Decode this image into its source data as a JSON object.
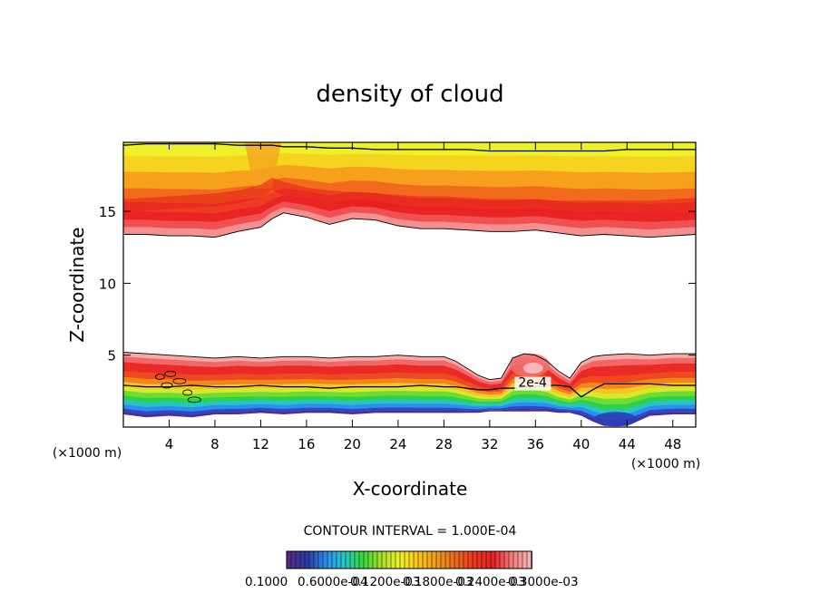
{
  "chart_data": {
    "type": "heatmap",
    "title": "density of cloud",
    "xlabel": "X-coordinate",
    "ylabel": "Z-coordinate",
    "x_unit": "(×1000 m)",
    "y_unit": "(×1000 m)",
    "xlim": [
      0,
      50
    ],
    "ylim": [
      0,
      19.8
    ],
    "x_ticks": [
      4,
      8,
      12,
      16,
      20,
      24,
      28,
      32,
      36,
      40,
      44,
      48
    ],
    "y_ticks": [
      5,
      10,
      15
    ],
    "contour_interval_text": "CONTOUR INTERVAL = 1.000E-04",
    "contour_label": "2e-4",
    "contour_label_position": [
      34.5,
      2.8
    ],
    "colorbar": {
      "labels": [
        "0.1000",
        "0.6000e-04",
        "0.1200e-03",
        "0.1800e-03",
        "0.2400e-03",
        "0.3000e-03"
      ],
      "colors": [
        "#5a2a82",
        "#2a3aa8",
        "#2f8cf0",
        "#24c8c8",
        "#38d838",
        "#a8e028",
        "#f2ef2a",
        "#f7c51e",
        "#f29a1e",
        "#f06a1e",
        "#ee3a20",
        "#ea2020",
        "#f07878",
        "#f6b0b0"
      ]
    },
    "upper_layer": {
      "x": [
        0,
        2,
        4,
        6,
        8,
        10,
        12,
        13,
        14,
        16,
        18,
        20,
        22,
        24,
        26,
        28,
        30,
        32,
        34,
        36,
        38,
        40,
        42,
        44,
        46,
        48,
        50
      ],
      "top": [
        19.8,
        19.8,
        19.8,
        19.8,
        19.8,
        19.8,
        19.8,
        19.8,
        19.8,
        19.8,
        19.8,
        19.8,
        19.8,
        19.8,
        19.8,
        19.8,
        19.8,
        19.8,
        19.8,
        19.8,
        19.8,
        19.8,
        19.8,
        19.8,
        19.8,
        19.8,
        19.8
      ],
      "top_contour": [
        19.6,
        19.7,
        19.7,
        19.7,
        19.7,
        19.6,
        19.6,
        19.6,
        19.5,
        19.5,
        19.4,
        19.4,
        19.3,
        19.3,
        19.3,
        19.3,
        19.3,
        19.2,
        19.2,
        19.2,
        19.2,
        19.2,
        19.2,
        19.3,
        19.3,
        19.3,
        19.3
      ],
      "bottom": [
        13.4,
        13.4,
        13.3,
        13.3,
        13.2,
        13.6,
        13.9,
        14.5,
        14.9,
        14.6,
        14.1,
        14.5,
        14.4,
        14.0,
        13.8,
        13.8,
        13.7,
        13.6,
        13.6,
        13.7,
        13.5,
        13.3,
        13.4,
        13.3,
        13.2,
        13.3,
        13.4
      ],
      "core": [
        15.4,
        15.5,
        15.6,
        15.7,
        15.8,
        16.0,
        16.4,
        16.9,
        16.6,
        16.2,
        16.0,
        15.9,
        15.8,
        15.7,
        15.6,
        15.6,
        15.5,
        15.4,
        15.4,
        15.4,
        15.3,
        15.3,
        15.3,
        15.3,
        15.3,
        15.4,
        15.5
      ]
    },
    "lower_layer": {
      "x": [
        0,
        2,
        4,
        6,
        8,
        10,
        12,
        14,
        16,
        18,
        20,
        22,
        24,
        26,
        28,
        29,
        30,
        31,
        32,
        33,
        34,
        35,
        36,
        37,
        38,
        39,
        40,
        41,
        42,
        44,
        46,
        48,
        50
      ],
      "top": [
        5.2,
        5.1,
        5.0,
        4.9,
        4.8,
        4.9,
        4.8,
        4.9,
        4.9,
        4.8,
        4.9,
        4.9,
        5.0,
        4.9,
        4.9,
        4.6,
        4.1,
        3.6,
        3.3,
        3.4,
        4.8,
        5.1,
        5.0,
        4.6,
        3.9,
        3.4,
        4.5,
        4.9,
        5.0,
        5.1,
        5.0,
        5.1,
        5.1
      ],
      "contour_2e4": [
        2.9,
        2.8,
        2.8,
        2.9,
        2.8,
        2.8,
        2.9,
        2.8,
        2.8,
        2.7,
        2.8,
        2.8,
        2.8,
        2.9,
        2.8,
        2.8,
        2.7,
        2.6,
        2.6,
        2.7,
        2.7,
        2.8,
        2.8,
        2.9,
        2.9,
        2.8,
        2.1,
        2.6,
        3.0,
        3.0,
        3.0,
        2.9,
        2.9
      ],
      "bottom": [
        0.9,
        0.7,
        0.8,
        0.7,
        0.9,
        0.9,
        1.0,
        0.9,
        1.0,
        1.0,
        0.9,
        1.0,
        1.0,
        1.0,
        1.0,
        1.0,
        1.0,
        1.0,
        1.1,
        1.1,
        1.1,
        1.1,
        1.1,
        1.1,
        1.0,
        1.0,
        0.8,
        0.4,
        0.1,
        0.1,
        0.8,
        0.9,
        0.9
      ]
    }
  }
}
